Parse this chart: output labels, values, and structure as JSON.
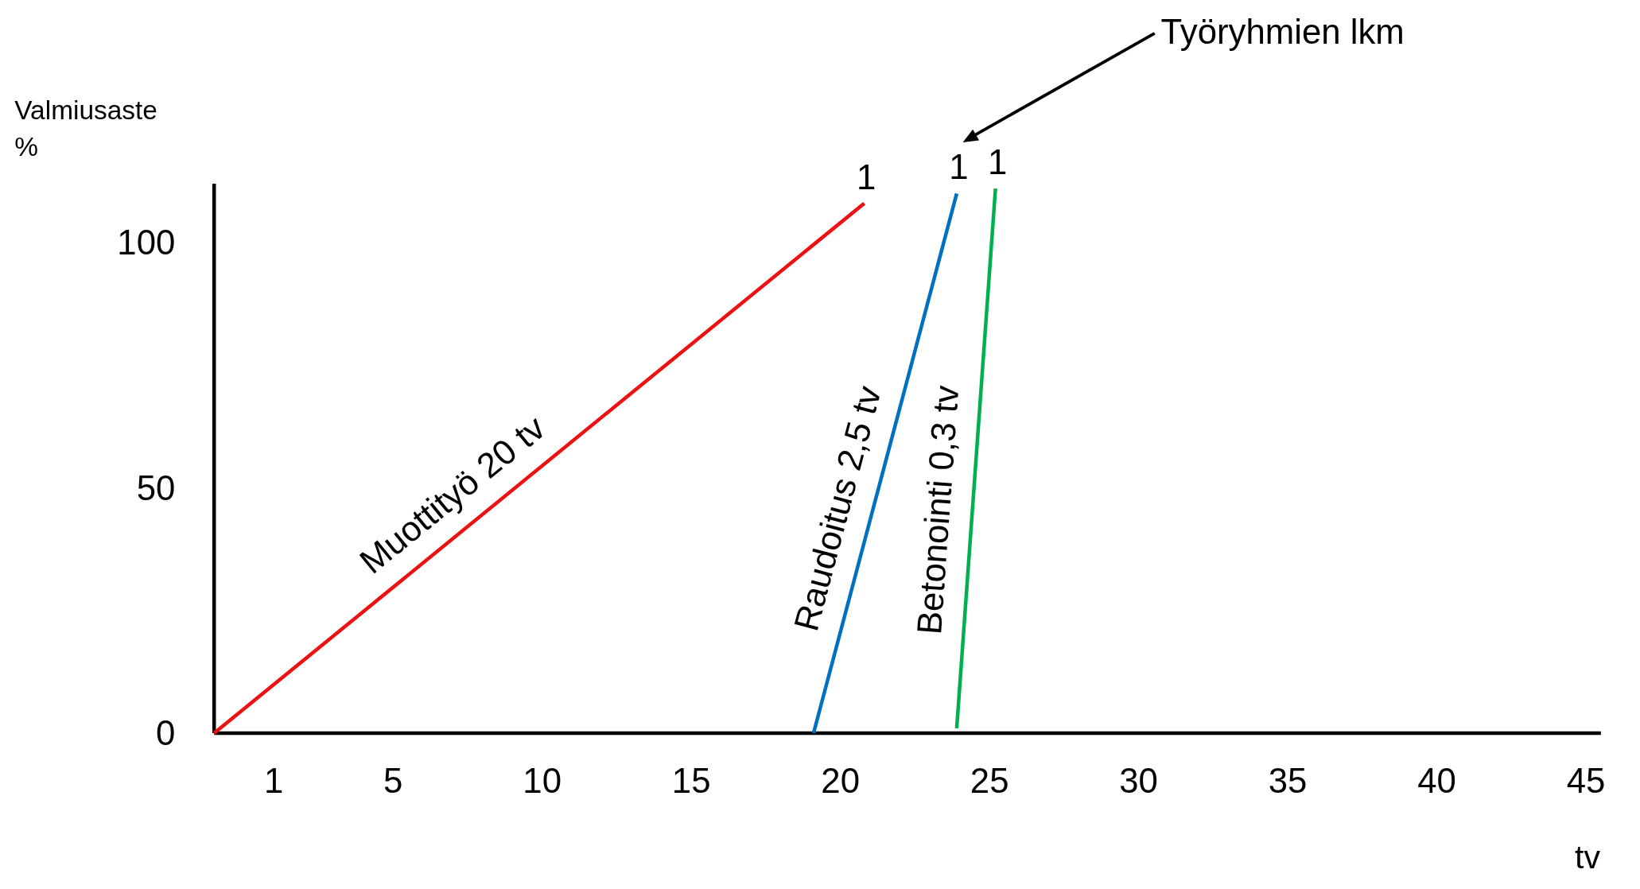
{
  "chart_data": {
    "type": "line",
    "xlabel": "tv",
    "ylabel": "Valmiusaste\n%",
    "xlim": [
      -1,
      45.5
    ],
    "ylim": [
      0,
      112
    ],
    "xticks": [
      1,
      5,
      10,
      15,
      20,
      25,
      30,
      35,
      40,
      45
    ],
    "yticks": [
      0,
      50,
      100
    ],
    "grid": false,
    "marker": "none",
    "line_style": "solid",
    "series": [
      {
        "name": "Muottityö 20 tv",
        "color": "#ee1111",
        "x": [
          -1,
          20.8
        ],
        "values": [
          0,
          108
        ]
      },
      {
        "name": "Raudoitus 2,5 tv",
        "color": "#0070c0",
        "x": [
          19.1,
          23.9
        ],
        "values": [
          0,
          110
        ]
      },
      {
        "name": "Betonointi 0,3 tv",
        "color": "#00b050",
        "x": [
          23.9,
          25.2
        ],
        "values": [
          1,
          111
        ]
      }
    ],
    "annotations": [
      "Työryhmien lkm",
      {
        "text": "1",
        "x": 20.8,
        "y": 108
      },
      {
        "text": "1",
        "x": 23.9,
        "y": 110
      },
      {
        "text": "1",
        "x": 25.2,
        "y": 111
      }
    ]
  }
}
